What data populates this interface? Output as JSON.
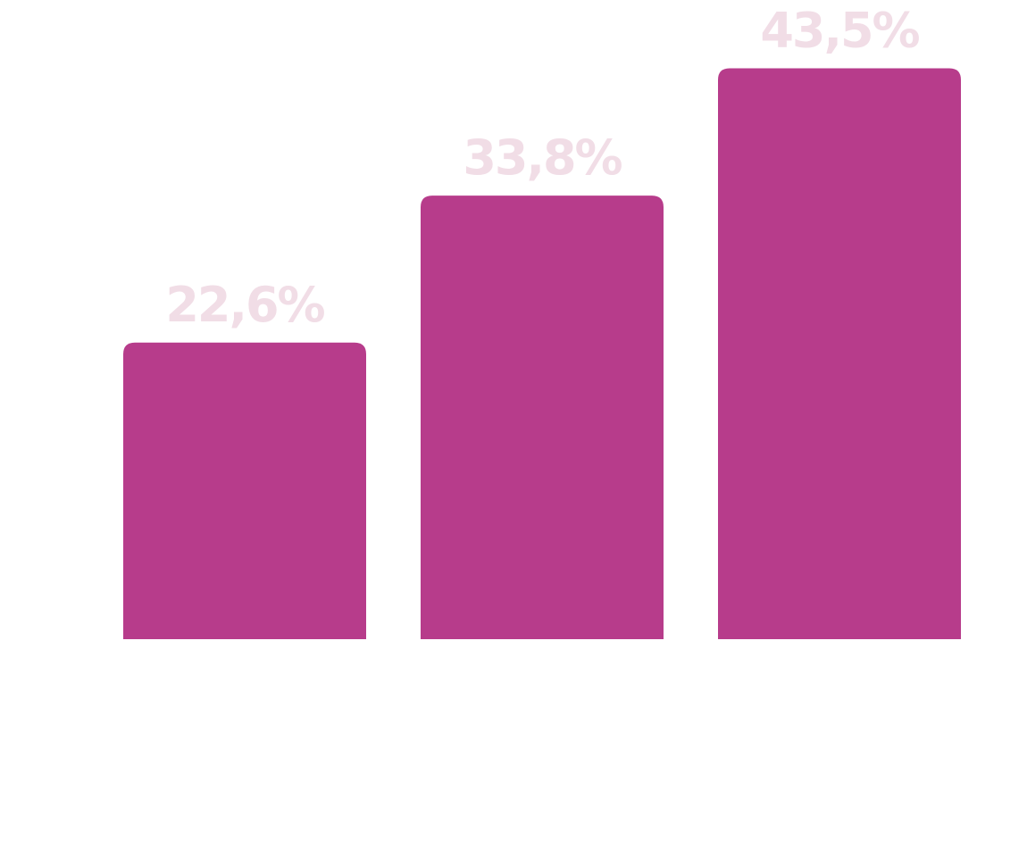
{
  "chart_data": {
    "type": "bar",
    "title": "",
    "xlabel": "",
    "ylabel": "",
    "categories": [
      "",
      "",
      ""
    ],
    "values": [
      22.6,
      33.8,
      43.5
    ],
    "data_labels": [
      "22,6%",
      "33,8%",
      "43,5%"
    ],
    "ylim": [
      0,
      50
    ],
    "grid": false,
    "legend": "none",
    "colors": {
      "bar": "#b73c8b",
      "label": "#f1dde6",
      "background": "#ffffff"
    }
  }
}
